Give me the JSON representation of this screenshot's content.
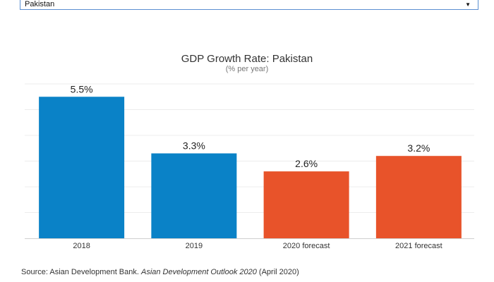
{
  "selector": {
    "value": "Pakistan",
    "caret_icon": "caret-down-icon"
  },
  "chart_data": {
    "type": "bar",
    "title": "GDP Growth Rate: Pakistan",
    "subtitle": "(% per year)",
    "categories": [
      "2018",
      "2019",
      "2020 forecast",
      "2021 forecast"
    ],
    "values": [
      5.5,
      3.3,
      2.6,
      3.2
    ],
    "data_labels": [
      "5.5%",
      "3.3%",
      "2.6%",
      "3.2%"
    ],
    "colors": [
      "#0a82c7",
      "#0a82c7",
      "#e8532a",
      "#e8532a"
    ],
    "ylim": [
      0,
      6
    ],
    "grid": true,
    "xlabel": "",
    "ylabel": ""
  },
  "source": {
    "prefix": "Source: Asian Development Bank. ",
    "title": "Asian Development Outlook 2020",
    "suffix": " (April 2020)"
  }
}
